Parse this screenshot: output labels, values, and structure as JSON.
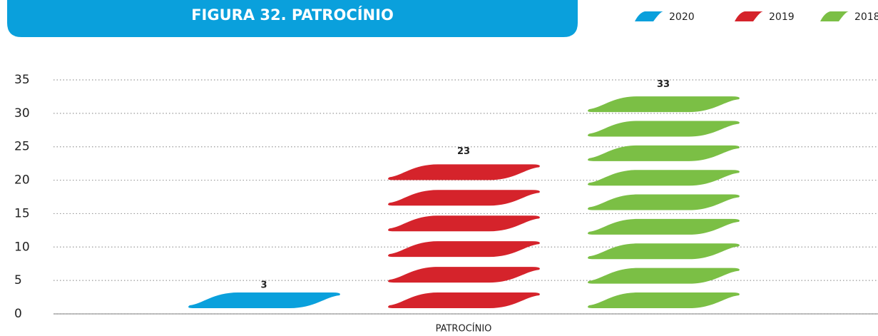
{
  "chart_data": {
    "type": "bar",
    "title": "FIGURA 32. PATROCÍNIO",
    "categories": [
      "PATROCÍNIO"
    ],
    "series": [
      {
        "name": "2020",
        "color": "#0aa0dc",
        "values": [
          3
        ]
      },
      {
        "name": "2019",
        "color": "#d5232b",
        "values": [
          23
        ]
      },
      {
        "name": "2018",
        "color": "#7bbf45",
        "values": [
          33
        ]
      }
    ],
    "ylim": [
      0,
      35
    ],
    "yticks": [
      0,
      5,
      10,
      15,
      20,
      25,
      30,
      35
    ],
    "grid": true,
    "legend": "top-right"
  }
}
